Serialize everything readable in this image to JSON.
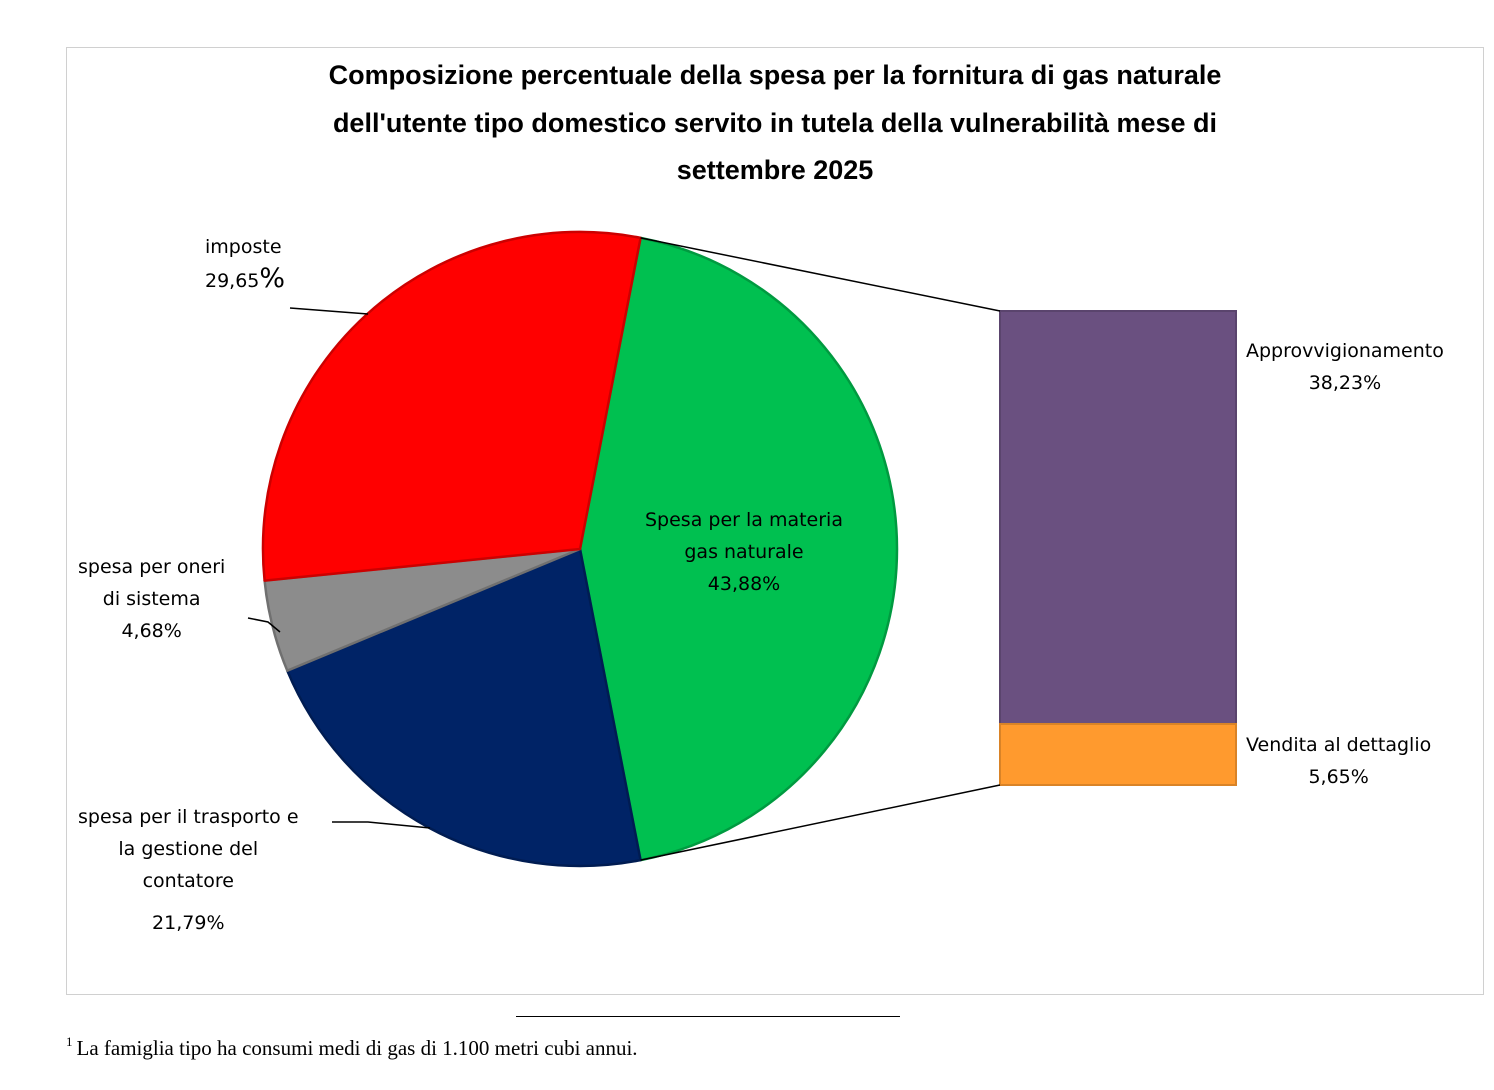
{
  "chart_data": {
    "type": "pie",
    "title_lines": [
      "Composizione percentuale della spesa per la fornitura di gas naturale",
      "dell'utente tipo domestico servito in tutela della vulnerabilità mese di",
      "settembre 2025"
    ],
    "slices": [
      {
        "key": "materia",
        "label_lines": [
          "Spesa per la materia",
          "gas naturale"
        ],
        "value": 43.88,
        "value_label": "43,88%",
        "color": "#00c050"
      },
      {
        "key": "trasporto",
        "label_lines": [
          "spesa per il trasporto e",
          "la gestione del",
          "contatore"
        ],
        "value": 21.79,
        "value_label": "21,79%",
        "color": "#002366"
      },
      {
        "key": "oneri",
        "label_lines": [
          "spesa per oneri",
          "di sistema"
        ],
        "value": 4.68,
        "value_label": "4,68%",
        "color": "#8c8c8c"
      },
      {
        "key": "imposte",
        "label_lines": [
          "imposte"
        ],
        "value": 29.65,
        "value_label": "29,65",
        "value_suffix": "%",
        "color": "#ff0000"
      }
    ],
    "breakdown_of": "materia",
    "breakdown": [
      {
        "label": "Approvvigionamento",
        "value": 38.23,
        "value_label": "38,23%",
        "color": "#6a5080"
      },
      {
        "label": "Vendita al dettaglio",
        "value": 5.65,
        "value_label": "5,65%",
        "color": "#ff9a2e"
      }
    ]
  },
  "footnote": {
    "marker": "1",
    "text": "La famiglia tipo ha consumi medi di gas di 1.100 metri cubi annui."
  }
}
